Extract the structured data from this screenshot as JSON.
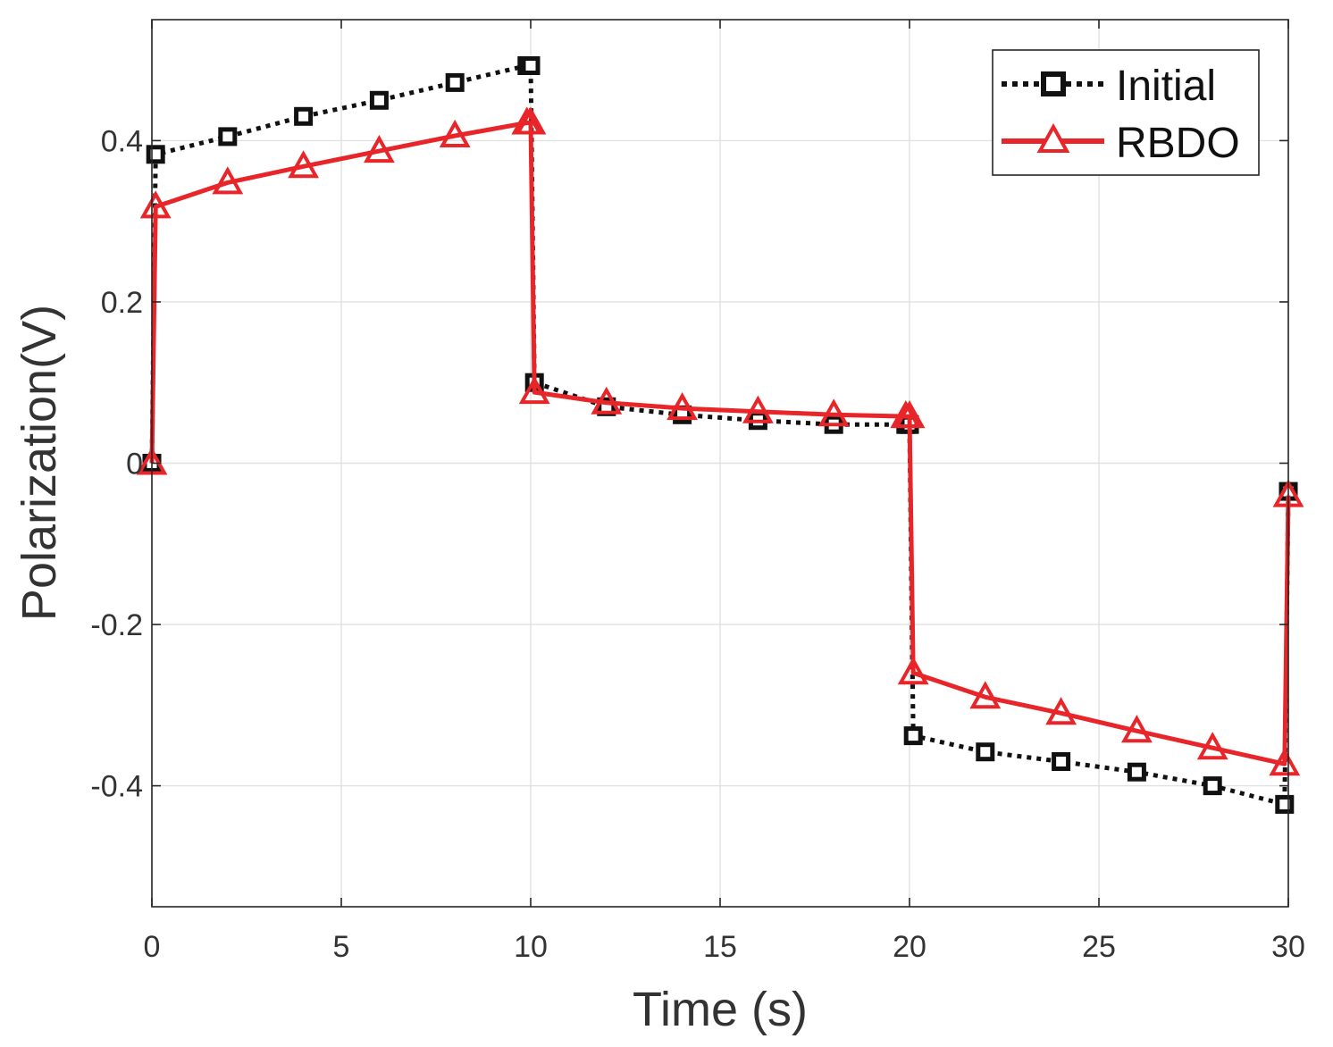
{
  "chart_data": {
    "type": "line",
    "title": "",
    "xlabel": "Time (s)",
    "ylabel": "Polarization(V)",
    "xlim": [
      0,
      30
    ],
    "ylim": [
      -0.55,
      0.55
    ],
    "xticks": [
      0,
      5,
      10,
      15,
      20,
      25,
      30
    ],
    "xtick_labels": [
      "0",
      "5",
      "10",
      "15",
      "20",
      "25",
      "30"
    ],
    "yticks": [
      -0.4,
      -0.2,
      0,
      0.2,
      0.4
    ],
    "ytick_labels": [
      "-0.4",
      "-0.2",
      "0",
      "0.2",
      "0.4"
    ],
    "grid": true,
    "legend_position": "top-right",
    "series": [
      {
        "name": "Initial",
        "color": "#111111",
        "line_style": "dotted",
        "marker": "square",
        "x": [
          0,
          0.1,
          2,
          4,
          6,
          8,
          9.9,
          10,
          10.1,
          12,
          14,
          16,
          18,
          19.9,
          20,
          20.1,
          22,
          24,
          26,
          28,
          29.9,
          30
        ],
        "y": [
          0,
          0.383,
          0.405,
          0.43,
          0.45,
          0.472,
          0.493,
          0.493,
          0.1,
          0.07,
          0.06,
          0.053,
          0.048,
          0.048,
          0.048,
          -0.338,
          -0.358,
          -0.37,
          -0.383,
          -0.4,
          -0.423,
          -0.035
        ]
      },
      {
        "name": "RBDO",
        "color": "#e8262a",
        "line_style": "solid",
        "marker": "triangle",
        "x": [
          0,
          0.1,
          2,
          4,
          6,
          8,
          9.9,
          10,
          10.1,
          12,
          14,
          16,
          18,
          19.9,
          20,
          20.1,
          22,
          24,
          26,
          28,
          29.9,
          30
        ],
        "y": [
          0,
          0.318,
          0.348,
          0.368,
          0.387,
          0.406,
          0.422,
          0.422,
          0.088,
          0.075,
          0.068,
          0.064,
          0.06,
          0.058,
          0.058,
          -0.26,
          -0.29,
          -0.31,
          -0.332,
          -0.353,
          -0.373,
          -0.04
        ]
      }
    ]
  }
}
